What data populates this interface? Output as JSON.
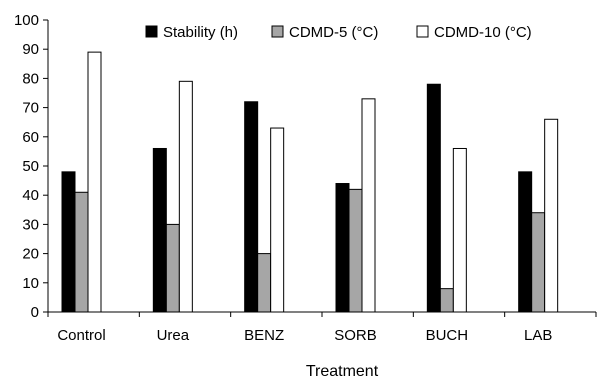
{
  "chart_data": {
    "type": "bar",
    "title": "",
    "xlabel": "Treatment",
    "ylabel": "",
    "ylim": [
      0,
      100
    ],
    "yticks": [
      0,
      10,
      20,
      30,
      40,
      50,
      60,
      70,
      80,
      90,
      100
    ],
    "grid": false,
    "legend_position": "top-right",
    "categories": [
      "Control",
      "Urea",
      "BENZ",
      "SORB",
      "BUCH",
      "LAB"
    ],
    "series": [
      {
        "name": "Stability (h)",
        "color": "#000000",
        "values": [
          48,
          56,
          72,
          44,
          78,
          48
        ]
      },
      {
        "name": "CDMD-5 (°C)",
        "color": "#a6a6a6",
        "values": [
          41,
          30,
          20,
          42,
          8,
          34
        ]
      },
      {
        "name": "CDMD-10 (°C)",
        "color": "#ffffff",
        "values": [
          89,
          79,
          63,
          73,
          56,
          66
        ]
      }
    ]
  }
}
